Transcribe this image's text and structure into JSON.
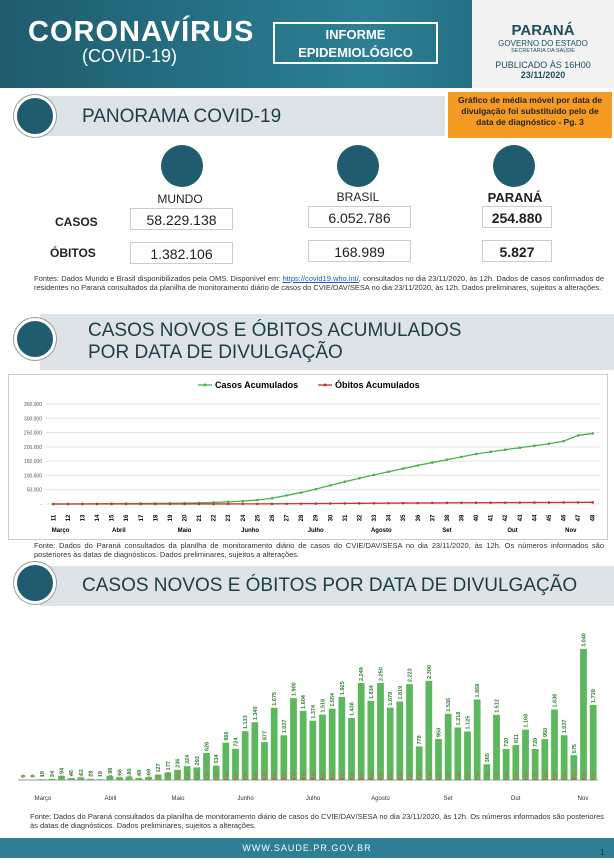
{
  "header": {
    "title": "CORONAVÍRUS",
    "subtitle": "(COVID-19)",
    "report": [
      "INFORME",
      "EPIDEMIOLÓGICO"
    ],
    "state": "PARANÁ",
    "government": "GOVERNO DO ESTADO",
    "secretariat": "SECRETARIA DA SAÚDE",
    "published": "PUBLICADO ÀS 16H00",
    "date": "23/11/2020"
  },
  "panorama": {
    "title": "PANORAMA COVID-19",
    "notice": "Gráfico de média móvel por data de divulgação foi substituído pelo de data de diagnóstico - Pg. 3",
    "columns": [
      "MUNDO",
      "BRASIL",
      "PARANÁ"
    ],
    "rows": [
      {
        "label": "CASOS",
        "values": [
          "58.229.138",
          "6.052.786",
          "254.880"
        ]
      },
      {
        "label": "ÓBITOS",
        "values": [
          "1.382.106",
          "168.989",
          "5.827"
        ]
      }
    ],
    "sources": {
      "before": "Fontes: Dados Mundo e Brasil disponibilizados pela OMS. Disponível em: ",
      "link": "https://covid19.who.int/",
      "after": ", consultados no dia 23/11/2020, às 12h. Dados de casos confirmados de residentes no Paraná consultados da planilha de monitoramento diário de casos do CVIE/DAV/SESA no dia 23/11/2020, às 12h. Dados preliminares, sujeitos a alterações."
    }
  },
  "section2": {
    "title": [
      "CASOS NOVOS E ÓBITOS ACUMULADOS",
      "POR DATA DE DIVULGAÇÃO"
    ],
    "source": "Fonte: Dados do Paraná consultados da planilha de monitoramento diário de casos do CVIE/DAV/SESA no dia 23/11/2020, às 12h. Os números informados são posteriores às datas de diagnósticos. Dados preliminares, sujeitos a alterações."
  },
  "section3": {
    "title": "CASOS NOVOS E ÓBITOS POR DATA DE DIVULGAÇÃO",
    "source": "Fonte: Dados do Paraná consultados da planilha de monitoramento diário de casos do CVIE/DAV/SESA no dia 23/11/2020, às 12h. Os números informados são posteriores às datas de diagnósticos. Dados preliminares, sujeitos a alterações."
  },
  "chart_data": [
    {
      "type": "line",
      "categories": [
        "11",
        "12",
        "13",
        "14",
        "15",
        "16",
        "17",
        "18",
        "19",
        "20",
        "21",
        "22",
        "23",
        "24",
        "25",
        "26",
        "27",
        "28",
        "29",
        "30",
        "31",
        "32",
        "33",
        "34",
        "35",
        "36",
        "37",
        "38",
        "39",
        "40",
        "41",
        "42",
        "43",
        "44",
        "45",
        "46",
        "47",
        "48"
      ],
      "month_labels": [
        "Março",
        "Abril",
        "Maio",
        "Junho",
        "Julho",
        "Agosto",
        "Set",
        "Out",
        "Nov"
      ],
      "series": [
        {
          "name": "Casos Acumulados",
          "color": "#4caf50",
          "values": [
            0,
            100,
            500,
            900,
            1200,
            1500,
            1800,
            2100,
            2500,
            3000,
            4000,
            5500,
            7500,
            10000,
            14000,
            20000,
            30000,
            40000,
            52000,
            65000,
            78000,
            90000,
            102000,
            113000,
            124000,
            135000,
            145000,
            155000,
            165000,
            175000,
            183000,
            190000,
            197000,
            204000,
            211000,
            220000,
            240000,
            247000
          ]
        },
        {
          "name": "Óbitos Acumulados",
          "color": "#c0392b",
          "values": [
            0,
            2,
            10,
            25,
            40,
            60,
            80,
            100,
            120,
            140,
            160,
            200,
            260,
            350,
            480,
            650,
            900,
            1200,
            1500,
            1800,
            2100,
            2400,
            2700,
            3000,
            3250,
            3500,
            3750,
            4000,
            4250,
            4450,
            4650,
            4850,
            5050,
            5200,
            5350,
            5500,
            5700,
            5827
          ]
        }
      ],
      "ylim": [
        0,
        350000
      ],
      "yticks": [
        {
          "value": 0,
          "label": "-"
        },
        {
          "value": 50000,
          "label": "50.000"
        },
        {
          "value": 100000,
          "label": "100.000"
        },
        {
          "value": 150000,
          "label": "150.000"
        },
        {
          "value": 200000,
          "label": "200.000"
        },
        {
          "value": 250000,
          "label": "250.000"
        },
        {
          "value": 300000,
          "label": "300.000"
        },
        {
          "value": 350000,
          "label": "350.000"
        }
      ],
      "grid": true,
      "legend": "top"
    },
    {
      "type": "bar",
      "month_labels": [
        "Março",
        "Abril",
        "Maio",
        "Junho",
        "Julho",
        "Agosto",
        "Set",
        "Out",
        "Nov"
      ],
      "ylim": [
        0,
        3200
      ],
      "series": [
        {
          "color": "#5cb85c",
          "values": [
            6,
            8,
            19,
            24,
            94,
            46,
            62,
            28,
            19,
            98,
            66,
            80,
            49,
            69,
            127,
            177,
            236,
            324,
            293,
            626,
            334,
            866,
            724,
            1133,
            1340,
            877,
            1675,
            1037,
            1900,
            1604,
            1374,
            1516,
            1654,
            1925,
            1438,
            2249,
            1834,
            2250,
            1678,
            1819,
            2223,
            778,
            2300,
            950,
            1536,
            1218,
            1125,
            1868,
            365,
            1512,
            720,
            811,
            1168,
            720,
            950,
            1636,
            1037,
            575,
            3040,
            1739
          ],
          "value_labels": [
            "6",
            "8",
            "19",
            "24",
            "94",
            "46",
            "62",
            "28",
            "19",
            "98",
            "66",
            "80",
            "49",
            "69",
            "127",
            "177",
            "236",
            "324",
            "293",
            "626",
            "334",
            "866",
            "724",
            "1.133",
            "1.340",
            "877",
            "1.675",
            "1.037",
            "1.900",
            "1.604",
            "1.374",
            "1.516",
            "1.654",
            "1.925",
            "1.438",
            "2.249",
            "1.834",
            "2.250",
            "1.678",
            "1.819",
            "2.223",
            "778",
            "2.300",
            "950",
            "1.536",
            "1.218",
            "1.125",
            "1.868",
            "365",
            "1.512",
            "720",
            "811",
            "1.168",
            "720",
            "950",
            "1.636",
            "1.037",
            "575",
            "3.040",
            "1.739"
          ]
        },
        {
          "color": "#d9534f",
          "values": [
            0,
            0,
            0,
            1,
            2,
            1,
            3,
            2,
            1,
            4,
            3,
            5,
            4,
            6,
            8,
            10,
            12,
            14,
            16,
            18,
            22,
            25,
            28,
            30,
            34,
            36,
            38,
            40,
            42,
            45,
            48,
            44,
            40,
            42,
            38,
            46,
            40,
            36,
            34,
            30,
            28,
            32,
            26,
            24,
            20,
            18,
            22,
            16,
            14,
            12,
            18,
            20,
            24,
            22,
            28,
            30,
            26,
            34,
            38,
            27
          ]
        }
      ]
    }
  ],
  "footer": {
    "url": "WWW.SAUDE.PR.GOV.BR",
    "page": "1"
  }
}
